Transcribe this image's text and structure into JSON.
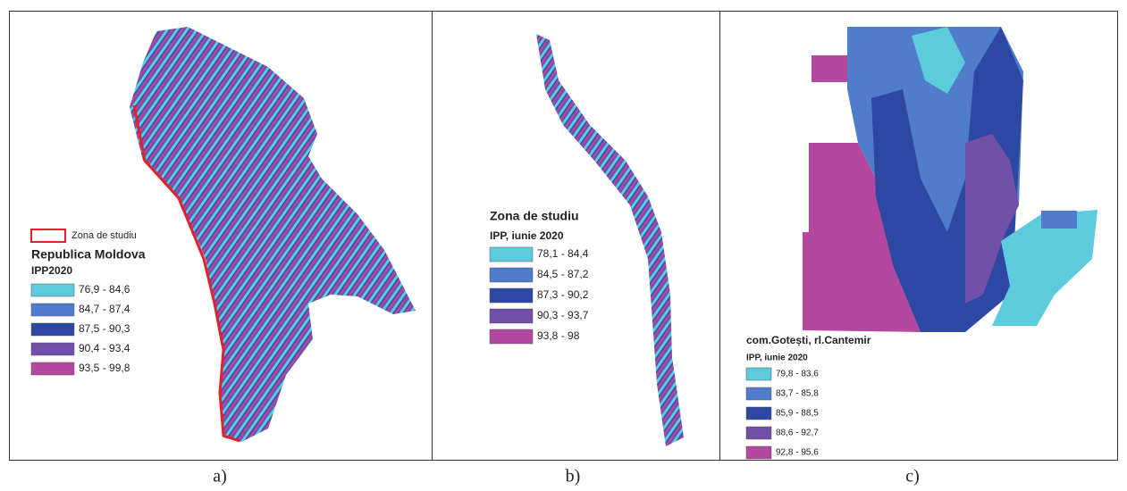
{
  "panels": [
    {
      "caption": "a)",
      "legend": {
        "boundary_label": "Zona de studiu",
        "title": "Republica Moldova",
        "subtitle": "IPP2020",
        "classes": [
          {
            "label": "76,9 - 84,6",
            "color": "#5ccbdc"
          },
          {
            "label": "84,7 - 87,4",
            "color": "#4f7dcb"
          },
          {
            "label": "87,5 - 90,3",
            "color": "#2e47a3"
          },
          {
            "label": "90,4 - 93,4",
            "color": "#7350a8"
          },
          {
            "label": "93,5 - 99,8",
            "color": "#b4479f"
          }
        ]
      }
    },
    {
      "caption": "b)",
      "legend": {
        "title": "Zona de studiu",
        "subtitle": "IPP, iunie 2020",
        "classes": [
          {
            "label": "78,1 - 84,4",
            "color": "#5ccbdc"
          },
          {
            "label": "84,5 - 87,2",
            "color": "#4f7dcb"
          },
          {
            "label": "87,3 - 90,2",
            "color": "#2e47a3"
          },
          {
            "label": "90,3 - 93,7",
            "color": "#7350a8"
          },
          {
            "label": "93,8 - 98",
            "color": "#b4479f"
          }
        ]
      }
    },
    {
      "caption": "c)",
      "legend": {
        "title": "com.Gotești, rl.Cantemir",
        "subtitle": "IPP, iunie 2020",
        "classes": [
          {
            "label": "79,8 - 83,6",
            "color": "#5ccbdc"
          },
          {
            "label": "83,7 - 85,8",
            "color": "#4f7dcb"
          },
          {
            "label": "85,9 - 88,5",
            "color": "#2e47a3"
          },
          {
            "label": "88,6 - 92,7",
            "color": "#7350a8"
          },
          {
            "label": "92,8 - 95,6",
            "color": "#b4479f"
          }
        ]
      }
    }
  ]
}
